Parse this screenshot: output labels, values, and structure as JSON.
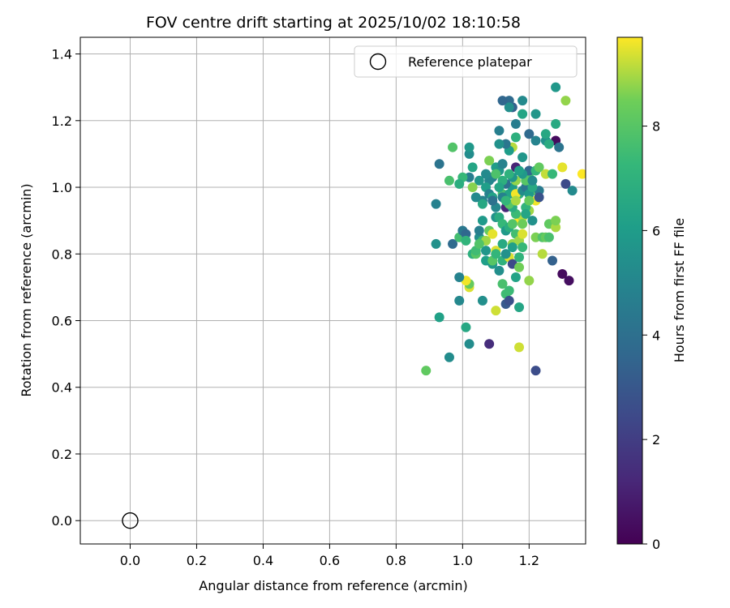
{
  "chart_data": {
    "type": "scatter",
    "title": "FOV centre drift starting at 2025/10/02 18:10:58",
    "xlabel": "Angular distance from reference (arcmin)",
    "ylabel": "Rotation from reference (arcmin)",
    "xlim": [
      -0.15,
      1.37
    ],
    "ylim": [
      -0.07,
      1.45
    ],
    "xticks": [
      "0.0",
      "0.2",
      "0.4",
      "0.6",
      "0.8",
      "1.0",
      "1.2"
    ],
    "yticks": [
      "0.0",
      "0.2",
      "0.4",
      "0.6",
      "0.8",
      "1.0",
      "1.2",
      "1.4"
    ],
    "grid": true,
    "legend": {
      "placement": "top-right",
      "entries": [
        "Reference platepar"
      ]
    },
    "reference_point": {
      "x": 0.0,
      "y": 0.0
    },
    "colorbar": {
      "label": "Hours from first FF file",
      "min": 0,
      "max": 9.7,
      "colormap": "viridis",
      "ticks": [
        "0",
        "2",
        "4",
        "6",
        "8"
      ]
    },
    "points": [
      [
        1.33,
        0.99,
        5.2
      ],
      [
        1.31,
        1.01,
        2.5
      ],
      [
        1.32,
        0.72,
        0.4
      ],
      [
        1.3,
        0.74,
        0.3
      ],
      [
        1.27,
        0.78,
        3.4
      ],
      [
        1.28,
        1.3,
        5.8
      ],
      [
        1.31,
        1.26,
        8.8
      ],
      [
        1.28,
        1.19,
        6.6
      ],
      [
        1.28,
        1.14,
        0.3
      ],
      [
        1.29,
        1.12,
        4.2
      ],
      [
        1.25,
        1.14,
        5.5
      ],
      [
        1.22,
        1.22,
        5.7
      ],
      [
        1.22,
        1.14,
        4.9
      ],
      [
        1.2,
        1.16,
        3.8
      ],
      [
        1.18,
        1.26,
        5.2
      ],
      [
        1.18,
        1.22,
        6.4
      ],
      [
        1.18,
        1.09,
        5.7
      ],
      [
        1.16,
        1.06,
        1.1
      ],
      [
        1.15,
        1.24,
        3.4
      ],
      [
        1.14,
        1.26,
        3.8
      ],
      [
        1.14,
        1.24,
        5.4
      ],
      [
        1.12,
        1.26,
        3.6
      ],
      [
        1.16,
        1.19,
        4.6
      ],
      [
        1.16,
        1.15,
        6.9
      ],
      [
        1.15,
        1.12,
        9.1
      ],
      [
        1.14,
        1.11,
        6.0
      ],
      [
        1.13,
        1.13,
        4.3
      ],
      [
        1.11,
        1.13,
        5.5
      ],
      [
        1.11,
        1.17,
        4.7
      ],
      [
        1.12,
        1.07,
        5.2
      ],
      [
        1.1,
        1.06,
        6.0
      ],
      [
        1.09,
        1.03,
        4.5
      ],
      [
        1.08,
        1.02,
        5.0
      ],
      [
        1.07,
        1.04,
        5.2
      ],
      [
        1.07,
        1.0,
        6.1
      ],
      [
        1.08,
        0.98,
        4.8
      ],
      [
        1.09,
        0.97,
        6.3
      ],
      [
        1.06,
        0.96,
        4.9
      ],
      [
        1.06,
        0.95,
        6.5
      ],
      [
        1.04,
        0.97,
        5.2
      ],
      [
        1.02,
        1.03,
        4.6
      ],
      [
        1.02,
        1.1,
        5.3
      ],
      [
        1.02,
        1.12,
        5.8
      ],
      [
        1.0,
        1.03,
        7.3
      ],
      [
        0.99,
        1.01,
        6.8
      ],
      [
        0.96,
        1.02,
        7.7
      ],
      [
        0.97,
        1.12,
        7.9
      ],
      [
        0.93,
        1.07,
        4.2
      ],
      [
        0.92,
        0.95,
        4.8
      ],
      [
        0.92,
        0.83,
        5.5
      ],
      [
        0.97,
        0.83,
        3.8
      ],
      [
        0.99,
        0.85,
        7.6
      ],
      [
        1.0,
        0.87,
        4.4
      ],
      [
        1.01,
        0.86,
        3.7
      ],
      [
        1.01,
        0.84,
        7.1
      ],
      [
        1.03,
        0.8,
        6.9
      ],
      [
        1.04,
        0.8,
        8.0
      ],
      [
        1.05,
        0.85,
        5.4
      ],
      [
        1.05,
        0.87,
        4.7
      ],
      [
        1.06,
        0.84,
        7.4
      ],
      [
        1.07,
        0.81,
        5.7
      ],
      [
        1.08,
        0.87,
        8.3
      ],
      [
        1.1,
        0.81,
        9.4
      ],
      [
        1.12,
        0.78,
        7.0
      ],
      [
        1.12,
        0.83,
        6.6
      ],
      [
        1.14,
        0.79,
        9.4
      ],
      [
        1.15,
        0.77,
        2.5
      ],
      [
        1.15,
        0.83,
        8.8
      ],
      [
        1.16,
        0.86,
        7.6
      ],
      [
        1.17,
        0.84,
        8.9
      ],
      [
        1.18,
        0.82,
        7.3
      ],
      [
        1.17,
        0.9,
        9.7
      ],
      [
        1.18,
        0.91,
        9.1
      ],
      [
        1.2,
        0.93,
        8.9
      ],
      [
        1.21,
        0.9,
        5.5
      ],
      [
        1.22,
        0.96,
        9.6
      ],
      [
        1.22,
        0.99,
        8.2
      ],
      [
        1.23,
        0.99,
        4.5
      ],
      [
        1.23,
        0.97,
        2.8
      ],
      [
        1.22,
        0.85,
        8.6
      ],
      [
        1.24,
        0.85,
        7.9
      ],
      [
        1.25,
        0.85,
        8.3
      ],
      [
        1.26,
        0.85,
        7.7
      ],
      [
        1.26,
        0.89,
        8.2
      ],
      [
        1.28,
        0.88,
        9.0
      ],
      [
        1.28,
        0.9,
        8.6
      ],
      [
        1.24,
        0.8,
        9.1
      ],
      [
        1.2,
        0.72,
        8.8
      ],
      [
        1.17,
        0.76,
        8.5
      ],
      [
        1.16,
        0.73,
        6.3
      ],
      [
        1.14,
        0.69,
        7.4
      ],
      [
        1.13,
        0.68,
        7.5
      ],
      [
        1.13,
        0.65,
        3.1
      ],
      [
        1.14,
        0.66,
        2.7
      ],
      [
        1.12,
        0.71,
        7.7
      ],
      [
        1.11,
        0.75,
        5.4
      ],
      [
        1.09,
        0.77,
        5.8
      ],
      [
        1.1,
        0.63,
        9.3
      ],
      [
        1.08,
        0.53,
        1.4
      ],
      [
        1.02,
        0.7,
        9.4
      ],
      [
        1.02,
        0.71,
        8.3
      ],
      [
        1.01,
        0.72,
        9.6
      ],
      [
        0.99,
        0.73,
        4.9
      ],
      [
        0.99,
        0.66,
        5.1
      ],
      [
        1.01,
        0.58,
        6.5
      ],
      [
        1.02,
        0.53,
        5.3
      ],
      [
        0.96,
        0.49,
        5.3
      ],
      [
        0.93,
        0.61,
        6.2
      ],
      [
        0.89,
        0.45,
        8.2
      ],
      [
        1.06,
        0.66,
        5.4
      ],
      [
        1.17,
        0.64,
        6.4
      ],
      [
        1.17,
        0.52,
        9.3
      ],
      [
        1.22,
        0.45,
        2.6
      ],
      [
        1.13,
        0.94,
        1.2
      ],
      [
        1.12,
        0.98,
        7.7
      ],
      [
        1.14,
        0.98,
        6.3
      ],
      [
        1.15,
        1.0,
        6.0
      ],
      [
        1.17,
        0.98,
        6.9
      ],
      [
        1.16,
        0.98,
        9.6
      ],
      [
        1.18,
        0.99,
        5.3
      ],
      [
        1.19,
        1.0,
        4.3
      ],
      [
        1.2,
        0.98,
        5.9
      ],
      [
        1.21,
        1.0,
        6.6
      ],
      [
        1.2,
        1.03,
        7.5
      ],
      [
        1.19,
        1.02,
        8.0
      ],
      [
        1.2,
        1.05,
        3.6
      ],
      [
        1.18,
        1.04,
        5.8
      ],
      [
        1.17,
        1.05,
        6.2
      ],
      [
        1.16,
        1.02,
        8.8
      ],
      [
        1.15,
        1.03,
        5.7
      ],
      [
        1.14,
        1.04,
        7.0
      ],
      [
        1.13,
        1.01,
        4.0
      ],
      [
        1.12,
        1.02,
        6.9
      ],
      [
        1.11,
        1.05,
        5.7
      ],
      [
        1.1,
        1.04,
        7.8
      ],
      [
        1.11,
        1.0,
        6.4
      ],
      [
        1.12,
        0.97,
        4.8
      ],
      [
        1.1,
        0.94,
        5.1
      ],
      [
        1.09,
        0.96,
        4.1
      ],
      [
        1.1,
        0.91,
        5.6
      ],
      [
        1.11,
        0.91,
        6.7
      ],
      [
        1.12,
        0.89,
        7.3
      ],
      [
        1.13,
        0.87,
        5.9
      ],
      [
        1.14,
        0.88,
        6.8
      ],
      [
        1.15,
        0.89,
        7.9
      ],
      [
        1.16,
        0.92,
        7.4
      ],
      [
        1.15,
        0.94,
        6.7
      ],
      [
        1.14,
        0.95,
        8.0
      ],
      [
        1.13,
        0.96,
        7.2
      ],
      [
        1.19,
        0.94,
        7.1
      ],
      [
        1.2,
        0.96,
        8.3
      ],
      [
        1.21,
        1.02,
        5.2
      ],
      [
        1.22,
        1.05,
        7.2
      ],
      [
        1.23,
        1.06,
        8.2
      ],
      [
        1.25,
        1.04,
        9.2
      ],
      [
        1.27,
        1.04,
        7.3
      ],
      [
        1.3,
        1.06,
        9.5
      ],
      [
        1.36,
        1.04,
        9.7
      ],
      [
        1.26,
        1.13,
        6.7
      ],
      [
        1.25,
        1.16,
        6.5
      ],
      [
        1.12,
        1.07,
        4.9
      ],
      [
        1.08,
        1.08,
        8.6
      ],
      [
        1.05,
        1.02,
        5.7
      ],
      [
        1.03,
        1.0,
        8.7
      ],
      [
        1.03,
        1.06,
        6.4
      ],
      [
        1.04,
        0.81,
        7.5
      ],
      [
        1.07,
        0.78,
        6.1
      ],
      [
        1.09,
        0.78,
        8.0
      ],
      [
        1.1,
        0.8,
        7.2
      ],
      [
        1.13,
        0.8,
        5.5
      ],
      [
        1.15,
        0.82,
        6.1
      ],
      [
        1.17,
        0.79,
        7.1
      ],
      [
        1.18,
        0.86,
        9.4
      ],
      [
        1.18,
        0.89,
        8.4
      ],
      [
        1.19,
        0.92,
        6.4
      ],
      [
        1.16,
        0.96,
        9.0
      ],
      [
        1.09,
        0.86,
        9.5
      ],
      [
        1.07,
        0.84,
        8.9
      ],
      [
        1.05,
        0.83,
        7.9
      ],
      [
        1.06,
        0.9,
        5.9
      ]
    ]
  }
}
